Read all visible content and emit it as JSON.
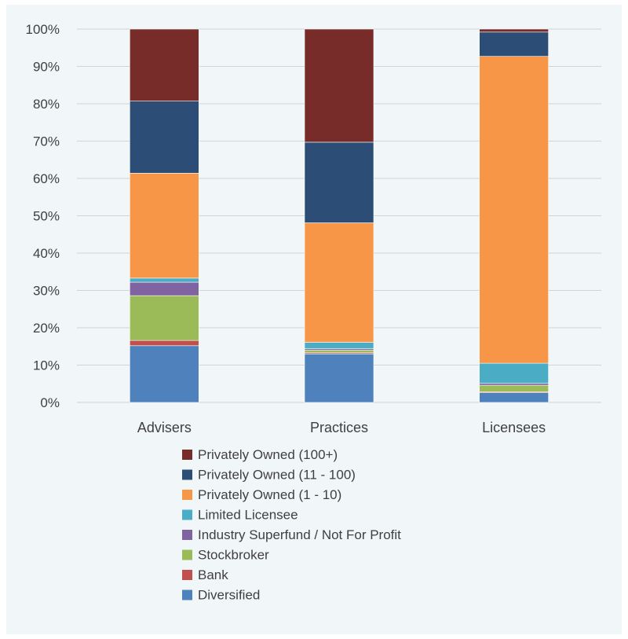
{
  "chart_data": {
    "type": "bar",
    "stacked": true,
    "percent": true,
    "categories": [
      "Advisers",
      "Practices",
      "Licensees"
    ],
    "ylim": [
      0,
      100
    ],
    "yticks": [
      "0%",
      "10%",
      "20%",
      "30%",
      "40%",
      "50%",
      "60%",
      "70%",
      "80%",
      "90%",
      "100%"
    ],
    "grid": true,
    "legend_position": "bottom",
    "series": [
      {
        "name": "Diversified",
        "color": "#4f81bd",
        "values": [
          15.2,
          13.0,
          2.6
        ]
      },
      {
        "name": "Bank",
        "color": "#c0504d",
        "values": [
          1.4,
          0.3,
          0.2
        ]
      },
      {
        "name": "Stockbroker",
        "color": "#9bbb59",
        "values": [
          12.0,
          0.7,
          1.8
        ]
      },
      {
        "name": "Industry Superfund / Not For Profit",
        "color": "#8064a2",
        "values": [
          3.6,
          0.4,
          0.5
        ]
      },
      {
        "name": "Limited Licensee",
        "color": "#4bacc6",
        "values": [
          1.1,
          1.7,
          5.4
        ]
      },
      {
        "name": "Privately Owned (1 - 10)",
        "color": "#f79646",
        "values": [
          28.1,
          32.0,
          82.2
        ]
      },
      {
        "name": "Privately Owned (11 - 100)",
        "color": "#2c4d75",
        "values": [
          19.3,
          21.6,
          6.5
        ]
      },
      {
        "name": "Privately Owned (100+)",
        "color": "#772c2a",
        "values": [
          19.3,
          30.3,
          0.8
        ]
      }
    ]
  }
}
